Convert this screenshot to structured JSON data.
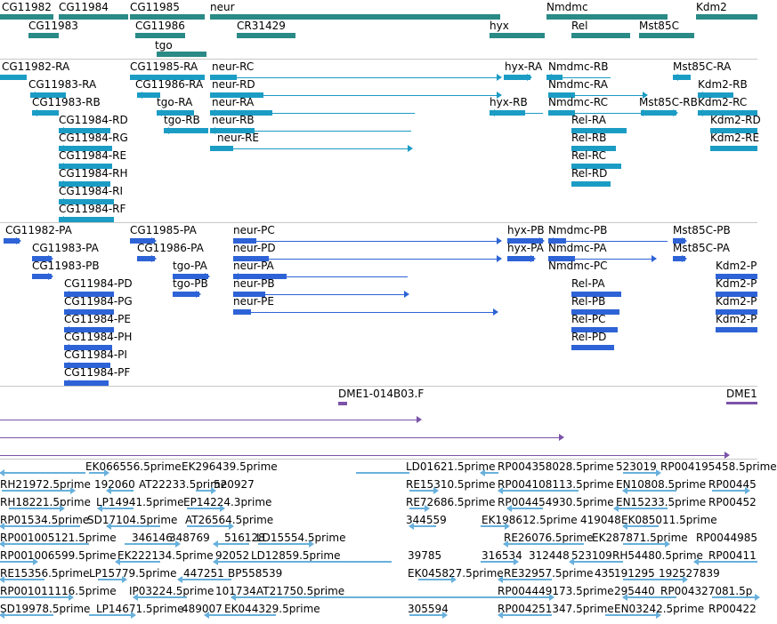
{
  "colors": {
    "gene": "#2a8a86",
    "transcript": "#1b9cc4",
    "protein": "#2d63d6",
    "probe": "#7b53a8",
    "est": "#68b0dc",
    "separator": "#c8c8c8"
  },
  "genes": [
    {
      "name": "gene-cg11982",
      "label": "CG11982"
    },
    {
      "name": "gene-cg11984",
      "label": "CG11984"
    },
    {
      "name": "gene-cg11985",
      "label": "CG11985"
    },
    {
      "name": "gene-neur",
      "label": "neur"
    },
    {
      "name": "gene-nmdmc",
      "label": "Nmdmc"
    },
    {
      "name": "gene-kdm2",
      "label": "Kdm2"
    },
    {
      "name": "gene-cg11983",
      "label": "CG11983"
    },
    {
      "name": "gene-cg11986",
      "label": "CG11986"
    },
    {
      "name": "gene-cr31429",
      "label": "CR31429"
    },
    {
      "name": "gene-hyx",
      "label": "hyx"
    },
    {
      "name": "gene-rel",
      "label": "Rel"
    },
    {
      "name": "gene-mst85c",
      "label": "Mst85C"
    },
    {
      "name": "gene-tgo",
      "label": "tgo"
    }
  ],
  "transcripts": [
    {
      "name": "transcript-cg11982-ra",
      "label": "CG11982-RA"
    },
    {
      "name": "transcript-cg11985-ra",
      "label": "CG11985-RA"
    },
    {
      "name": "transcript-neur-rc",
      "label": "neur-RC"
    },
    {
      "name": "transcript-hyx-ra",
      "label": "hyx-RA"
    },
    {
      "name": "transcript-nmdmc-rb",
      "label": "Nmdmc-RB"
    },
    {
      "name": "transcript-mst85c-ra",
      "label": "Mst85C-RA"
    },
    {
      "name": "transcript-cg11983-ra",
      "label": "CG11983-RA"
    },
    {
      "name": "transcript-cg11986-ra",
      "label": "CG11986-RA"
    },
    {
      "name": "transcript-neur-rd",
      "label": "neur-RD"
    },
    {
      "name": "transcript-nmdmc-ra",
      "label": "Nmdmc-RA"
    },
    {
      "name": "transcript-kdm2-rb",
      "label": "Kdm2-RB"
    },
    {
      "name": "transcript-cg11983-rb",
      "label": "CG11983-RB"
    },
    {
      "name": "transcript-tgo-ra",
      "label": "tgo-RA"
    },
    {
      "name": "transcript-neur-ra",
      "label": "neur-RA"
    },
    {
      "name": "transcript-hyx-rb",
      "label": "hyx-RB"
    },
    {
      "name": "transcript-nmdmc-rc",
      "label": "Nmdmc-RC"
    },
    {
      "name": "transcript-mst85c-rb",
      "label": "Mst85C-RB"
    },
    {
      "name": "transcript-kdm2-rc",
      "label": "Kdm2-RC"
    },
    {
      "name": "transcript-cg11984-rd",
      "label": "CG11984-RD"
    },
    {
      "name": "transcript-tgo-rb",
      "label": "tgo-RB"
    },
    {
      "name": "transcript-neur-rb",
      "label": "neur-RB"
    },
    {
      "name": "transcript-rel-ra",
      "label": "Rel-RA"
    },
    {
      "name": "transcript-kdm2-rd",
      "label": "Kdm2-RD"
    },
    {
      "name": "transcript-cg11984-rg",
      "label": "CG11984-RG"
    },
    {
      "name": "transcript-neur-re",
      "label": "neur-RE"
    },
    {
      "name": "transcript-rel-rb",
      "label": "Rel-RB"
    },
    {
      "name": "transcript-kdm2-re",
      "label": "Kdm2-RE"
    },
    {
      "name": "transcript-cg11984-re",
      "label": "CG11984-RE"
    },
    {
      "name": "transcript-rel-rc",
      "label": "Rel-RC"
    },
    {
      "name": "transcript-cg11984-rh",
      "label": "CG11984-RH"
    },
    {
      "name": "transcript-rel-rd",
      "label": "Rel-RD"
    },
    {
      "name": "transcript-cg11984-ri",
      "label": "CG11984-RI"
    },
    {
      "name": "transcript-cg11984-rf",
      "label": "CG11984-RF"
    }
  ],
  "proteins": [
    {
      "name": "protein-cg11982-pa",
      "label": "CG11982-PA"
    },
    {
      "name": "protein-cg11985-pa",
      "label": "CG11985-PA"
    },
    {
      "name": "protein-neur-pc",
      "label": "neur-PC"
    },
    {
      "name": "protein-hyx-pb",
      "label": "hyx-PB"
    },
    {
      "name": "protein-nmdmc-pb",
      "label": "Nmdmc-PB"
    },
    {
      "name": "protein-mst85c-pb",
      "label": "Mst85C-PB"
    },
    {
      "name": "protein-cg11983-pa",
      "label": "CG11983-PA"
    },
    {
      "name": "protein-cg11986-pa",
      "label": "CG11986-PA"
    },
    {
      "name": "protein-neur-pd",
      "label": "neur-PD"
    },
    {
      "name": "protein-hyx-pa",
      "label": "hyx-PA"
    },
    {
      "name": "protein-nmdmc-pa",
      "label": "Nmdmc-PA"
    },
    {
      "name": "protein-mst85c-pa",
      "label": "Mst85C-PA"
    },
    {
      "name": "protein-cg11983-pb",
      "label": "CG11983-PB"
    },
    {
      "name": "protein-tgo-pa",
      "label": "tgo-PA"
    },
    {
      "name": "protein-neur-pa",
      "label": "neur-PA"
    },
    {
      "name": "protein-nmdmc-pc",
      "label": "Nmdmc-PC"
    },
    {
      "name": "protein-kdm2-p-1",
      "label": "Kdm2-P"
    },
    {
      "name": "protein-cg11984-pd",
      "label": "CG11984-PD"
    },
    {
      "name": "protein-tgo-pb",
      "label": "tgo-PB"
    },
    {
      "name": "protein-neur-pb",
      "label": "neur-PB"
    },
    {
      "name": "protein-rel-pa",
      "label": "Rel-PA"
    },
    {
      "name": "protein-kdm2-p-2",
      "label": "Kdm2-P"
    },
    {
      "name": "protein-cg11984-pg",
      "label": "CG11984-PG"
    },
    {
      "name": "protein-neur-pe",
      "label": "neur-PE"
    },
    {
      "name": "protein-rel-pb",
      "label": "Rel-PB"
    },
    {
      "name": "protein-kdm2-p-3",
      "label": "Kdm2-P"
    },
    {
      "name": "protein-cg11984-pe",
      "label": "CG11984-PE"
    },
    {
      "name": "protein-rel-pc",
      "label": "Rel-PC"
    },
    {
      "name": "protein-kdm2-p-4",
      "label": "Kdm2-P"
    },
    {
      "name": "protein-cg11984-ph",
      "label": "CG11984-PH"
    },
    {
      "name": "protein-rel-pd",
      "label": "Rel-PD"
    },
    {
      "name": "protein-cg11984-pi",
      "label": "CG11984-PI"
    },
    {
      "name": "protein-cg11984-pf",
      "label": "CG11984-PF"
    }
  ],
  "probes": [
    {
      "name": "probe-dme1-014b03-f",
      "label": "DME1-014B03.F"
    },
    {
      "name": "probe-dme1-right",
      "label": "DME1"
    }
  ],
  "ests": [
    "EK066556.5prime",
    "EK296439.5prime",
    "LD01621.5prime",
    "RP004358028.5prime",
    "523019",
    "RP004195458.5prime",
    "RH21972.5prime",
    "192060",
    "AT22233.5prime",
    "520927",
    "RE15310.5prime",
    "RP004108113.5prime",
    "EN10808.5prime",
    "RP00445",
    "RH18221.5prime",
    "LP14941.5prime",
    "EP14224.3prime",
    "RE72686.5prime",
    "RP004454930.5prime",
    "EN15233.5prime",
    "RP00452",
    "RP01534.5prime",
    "SD17104.5prime",
    "AT26564.5prime",
    "344559",
    "EK198612.5prime",
    "419048",
    "EK085011.5prime",
    "RP001005121.5prime",
    "346146",
    "348769",
    "516128",
    "LD15554.5prime",
    "RE26076.5prime",
    "EK287871.5prime",
    "RP0044985",
    "RP001006599.5prime",
    "EK222134.5prime",
    "92052",
    "LD12859.5prime",
    "39785",
    "316534",
    "312448",
    "523109",
    "RH54480.5prime",
    "RP00411",
    "RE15356.5prime",
    "LP15779.5prime",
    "447251",
    "BP558539",
    "EK045827.5prime",
    "RE32957.5prime",
    "435",
    "191295",
    "192527839",
    "RP001011116.5prime",
    "IP03224.5prime",
    "101734",
    "AT21750.5prime",
    "RP004449173.5prime",
    "295440",
    "RP004327081.5p",
    "SD19978.5prime",
    "LP14671.5prime",
    "489007",
    "EK044329.5prime",
    "305594",
    "RP004251347.5prime",
    "EN03242.5prime",
    "RP00422"
  ]
}
